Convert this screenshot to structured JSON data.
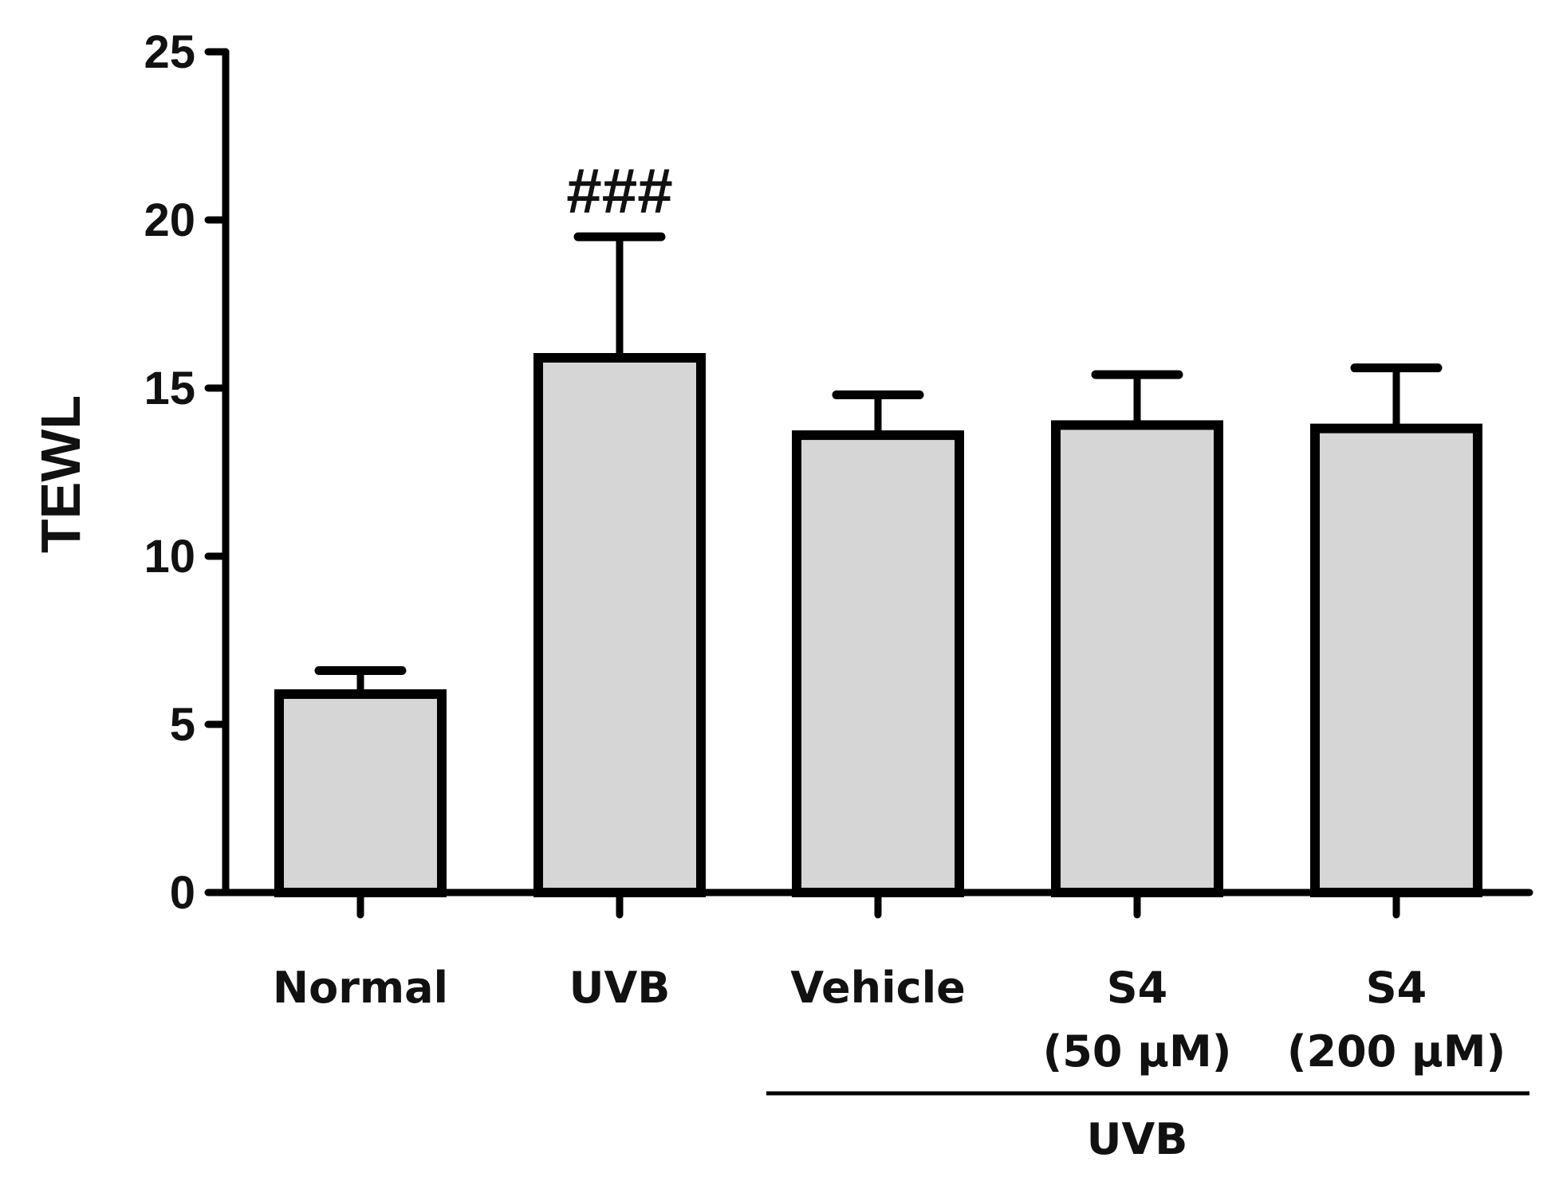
{
  "chart_data": {
    "type": "bar",
    "title": "",
    "xlabel": "",
    "ylabel": "TEWL",
    "ylim": [
      0,
      25
    ],
    "yticks": [
      "0",
      "5",
      "10",
      "15",
      "20",
      "25"
    ],
    "categories": [
      {
        "line1": "Normal",
        "line2": ""
      },
      {
        "line1": "UVB",
        "line2": ""
      },
      {
        "line1": "Vehicle",
        "line2": ""
      },
      {
        "line1": "S4",
        "line2": "(50 μM)"
      },
      {
        "line1": "S4",
        "line2": "(200 μM)"
      }
    ],
    "values": [
      5.9,
      15.9,
      13.6,
      13.9,
      13.8
    ],
    "error_upper": [
      6.6,
      19.5,
      14.8,
      15.4,
      15.6
    ],
    "annotations": [
      {
        "category_index": 1,
        "text": "###"
      }
    ],
    "group_bracket": {
      "label": "UVB",
      "from_index": 2,
      "to_index": 4
    },
    "bar_fill": "#d6d6d6",
    "edge_color": "#000000"
  }
}
